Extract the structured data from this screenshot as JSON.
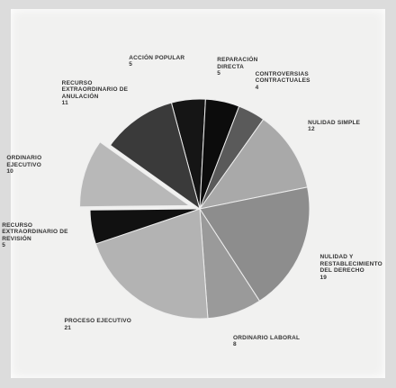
{
  "chart_data": {
    "type": "pie",
    "categories": [
      "ACCIÓN POPULAR",
      "REPARACIÓN DIRECTA",
      "CONTROVERSIAS CONTRACTUALES",
      "NULIDAD SIMPLE",
      "NULIDAD Y RESTABLECIMIENTO DEL DERECHO",
      "ORDINARIO LABORAL",
      "PROCESO EJECUTIVO",
      "RECURSO EXTRAORDINARIO DE REVISIÓN",
      "ORDINARIO EJECUTIVO",
      "RECURSO EXTRAORDINARIO DE ANULACIÓN"
    ],
    "values": [
      5,
      5,
      4,
      12,
      19,
      8,
      21,
      5,
      10,
      11
    ],
    "colors": [
      "#151515",
      "#0c0c0c",
      "#5a5a5a",
      "#a9a9a9",
      "#8d8d8d",
      "#9a9a9a",
      "#b3b3b3",
      "#111111",
      "#b8b8b8",
      "#3a3a3a"
    ],
    "exploded": [
      8
    ]
  }
}
